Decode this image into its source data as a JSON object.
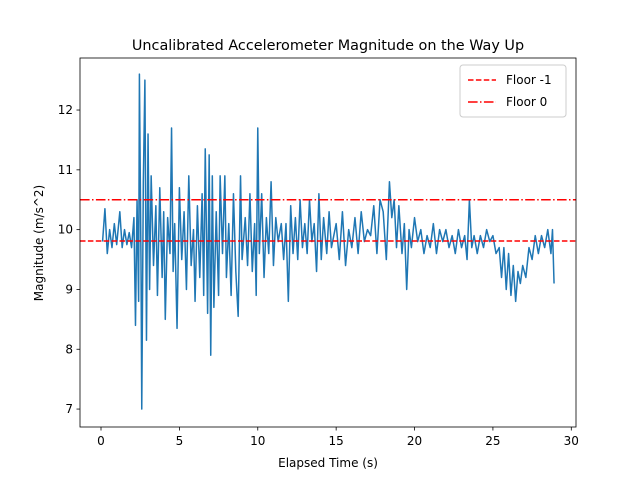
{
  "chart_data": {
    "type": "line",
    "title": "Uncalibrated Accelerometer Magnitude on the Way Up",
    "xlabel": "Elapsed Time (s)",
    "ylabel": "Magnitude (m/s^2)",
    "xlim": [
      -1.34,
      30.3
    ],
    "ylim": [
      6.7,
      12.87
    ],
    "xticks": [
      0,
      5,
      10,
      15,
      20,
      25,
      30
    ],
    "yticks": [
      7,
      8,
      9,
      10,
      11,
      12
    ],
    "legend": "upper right",
    "x": [
      0.1,
      0.25,
      0.4,
      0.55,
      0.7,
      0.85,
      1.0,
      1.2,
      1.35,
      1.5,
      1.65,
      1.8,
      1.95,
      2.1,
      2.2,
      2.3,
      2.4,
      2.45,
      2.55,
      2.6,
      2.7,
      2.8,
      2.9,
      3.0,
      3.1,
      3.2,
      3.35,
      3.5,
      3.6,
      3.75,
      3.9,
      4.0,
      4.1,
      4.25,
      4.4,
      4.5,
      4.6,
      4.7,
      4.85,
      5.0,
      5.15,
      5.3,
      5.45,
      5.6,
      5.75,
      5.9,
      6.0,
      6.15,
      6.3,
      6.45,
      6.55,
      6.65,
      6.8,
      6.9,
      7.0,
      7.1,
      7.2,
      7.35,
      7.5,
      7.6,
      7.75,
      7.9,
      8.0,
      8.15,
      8.3,
      8.45,
      8.6,
      8.75,
      8.9,
      9.0,
      9.2,
      9.35,
      9.5,
      9.65,
      9.8,
      9.9,
      10.0,
      10.1,
      10.25,
      10.4,
      10.55,
      10.7,
      10.85,
      11.0,
      11.15,
      11.3,
      11.5,
      11.65,
      11.8,
      11.95,
      12.1,
      12.25,
      12.4,
      12.55,
      12.7,
      12.85,
      13.0,
      13.15,
      13.3,
      13.45,
      13.6,
      13.75,
      13.9,
      14.05,
      14.2,
      14.4,
      14.55,
      14.7,
      15.0,
      15.2,
      15.4,
      15.6,
      15.8,
      16.0,
      16.2,
      16.4,
      16.6,
      16.8,
      17.0,
      17.2,
      17.4,
      17.6,
      17.8,
      18.0,
      18.2,
      18.4,
      18.55,
      18.7,
      18.85,
      19.0,
      19.2,
      19.35,
      19.5,
      19.65,
      19.8,
      20.0,
      20.2,
      20.4,
      20.6,
      20.8,
      21.0,
      21.2,
      21.4,
      21.6,
      21.8,
      22.0,
      22.2,
      22.4,
      22.6,
      22.8,
      23.0,
      23.2,
      23.35,
      23.5,
      23.65,
      23.8,
      24.0,
      24.2,
      24.4,
      24.6,
      24.8,
      25.0,
      25.2,
      25.4,
      25.55,
      25.7,
      25.85,
      26.0,
      26.15,
      26.3,
      26.45,
      26.6,
      26.75,
      26.9,
      27.1,
      27.3,
      27.5,
      27.7,
      27.9,
      28.1,
      28.3,
      28.5,
      28.7,
      28.8,
      28.9
    ],
    "series": [
      {
        "color": "#1f77b4",
        "values": [
          9.8,
          10.35,
          9.6,
          10.0,
          9.7,
          10.1,
          9.75,
          10.3,
          9.7,
          10.0,
          9.75,
          9.95,
          9.7,
          10.2,
          8.4,
          10.5,
          8.8,
          12.6,
          9.5,
          7.0,
          10.8,
          12.5,
          8.15,
          11.6,
          9.0,
          10.9,
          9.4,
          10.4,
          8.9,
          10.7,
          9.2,
          10.3,
          8.5,
          10.2,
          9.6,
          11.7,
          9.3,
          10.1,
          8.35,
          10.7,
          9.5,
          10.3,
          9.0,
          10.9,
          9.4,
          10.0,
          8.8,
          10.4,
          9.2,
          10.6,
          8.9,
          11.35,
          8.6,
          11.25,
          7.9,
          10.9,
          8.7,
          10.3,
          8.9,
          10.9,
          9.6,
          10.9,
          9.2,
          10.1,
          8.9,
          10.6,
          9.3,
          8.55,
          10.9,
          9.5,
          10.2,
          9.4,
          10.6,
          9.3,
          10.1,
          8.9,
          11.7,
          9.6,
          10.6,
          9.2,
          10.2,
          9.6,
          10.8,
          9.4,
          10.2,
          9.8,
          10.1,
          9.5,
          10.1,
          8.8,
          10.4,
          9.6,
          10.2,
          9.5,
          10.5,
          9.7,
          10.1,
          9.6,
          10.5,
          9.8,
          10.1,
          9.3,
          10.6,
          9.5,
          10.2,
          9.6,
          10.3,
          9.7,
          10.1,
          9.5,
          10.3,
          9.4,
          10.0,
          9.7,
          10.2,
          9.6,
          10.3,
          9.8,
          10.0,
          9.9,
          10.4,
          9.6,
          10.5,
          10.3,
          9.5,
          10.8,
          10.2,
          10.5,
          9.7,
          10.4,
          9.6,
          10.1,
          9.0,
          10.0,
          9.7,
          10.2,
          9.8,
          10.0,
          9.6,
          9.9,
          9.7,
          10.1,
          9.6,
          10.0,
          9.8,
          10.0,
          9.7,
          9.9,
          9.6,
          10.0,
          9.7,
          9.9,
          9.5,
          10.5,
          9.7,
          9.9,
          9.6,
          9.9,
          9.7,
          10.0,
          9.8,
          9.9,
          9.6,
          9.7,
          9.2,
          9.7,
          9.0,
          9.6,
          8.9,
          9.4,
          8.8,
          9.3,
          9.1,
          9.4,
          9.2,
          9.7,
          9.5,
          9.9,
          9.6,
          9.9,
          9.7,
          10.0,
          9.6,
          10.0,
          9.1
        ]
      }
    ],
    "hlines": [
      {
        "name": "Floor -1",
        "value": 9.81,
        "color": "#ff0000",
        "style": "dashed"
      },
      {
        "name": "Floor 0",
        "value": 10.5,
        "color": "#ff0000",
        "style": "dashdot"
      }
    ]
  }
}
